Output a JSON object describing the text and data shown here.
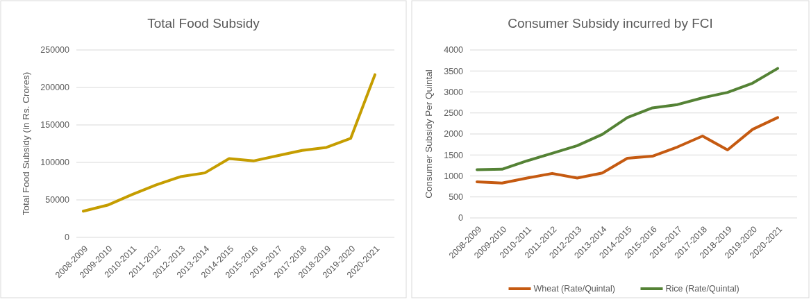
{
  "chart_data": [
    {
      "type": "line",
      "title": "Total Food Subsidy",
      "ylabel": "Total Food Subsidy (in Rs. Crores)",
      "categories": [
        "2008-2009",
        "2009-2010",
        "2010-2011",
        "2011-2012",
        "2012-2013",
        "2013-2014",
        "2014-2015",
        "2015-2016",
        "2016-2017",
        "2017-2018",
        "2018-2019",
        "2019-2020",
        "2020-2021"
      ],
      "series": [
        {
          "color": "#c59d00",
          "values": [
            35000,
            43000,
            57000,
            70000,
            81000,
            86000,
            105000,
            102000,
            109000,
            116000,
            120000,
            132000,
            217000
          ]
        }
      ],
      "ylim": [
        0,
        250000
      ],
      "yticks": [
        0,
        50000,
        100000,
        150000,
        200000,
        250000
      ],
      "grid": "y",
      "legend": false
    },
    {
      "type": "line",
      "title": "Consumer  Subsidy incurred by FCI",
      "ylabel": "Consumer Subsidy Per Quintal",
      "categories": [
        "2008-2009",
        "2009-2010",
        "2010-2011",
        "2011-2012",
        "2012-2013",
        "2013-2014",
        "2014-2015",
        "2015-2016",
        "2016-2017",
        "2017-2018",
        "2018-2019",
        "2019-2020",
        "2020-2021"
      ],
      "series": [
        {
          "name": "Wheat (Rate/Quintal)",
          "color": "#c55a11",
          "values": [
            860,
            830,
            950,
            1060,
            950,
            1070,
            1420,
            1470,
            1690,
            1950,
            1620,
            2110,
            2390
          ]
        },
        {
          "name": "Rice (Rate/Quintal)",
          "color": "#548235",
          "values": [
            1150,
            1160,
            1360,
            1540,
            1720,
            1990,
            2390,
            2620,
            2700,
            2860,
            2990,
            3210,
            3560
          ]
        }
      ],
      "ylim": [
        0,
        4000
      ],
      "yticks": [
        0,
        500,
        1000,
        1500,
        2000,
        2500,
        3000,
        3500,
        4000
      ],
      "grid": "y",
      "legend": "bottom"
    }
  ]
}
